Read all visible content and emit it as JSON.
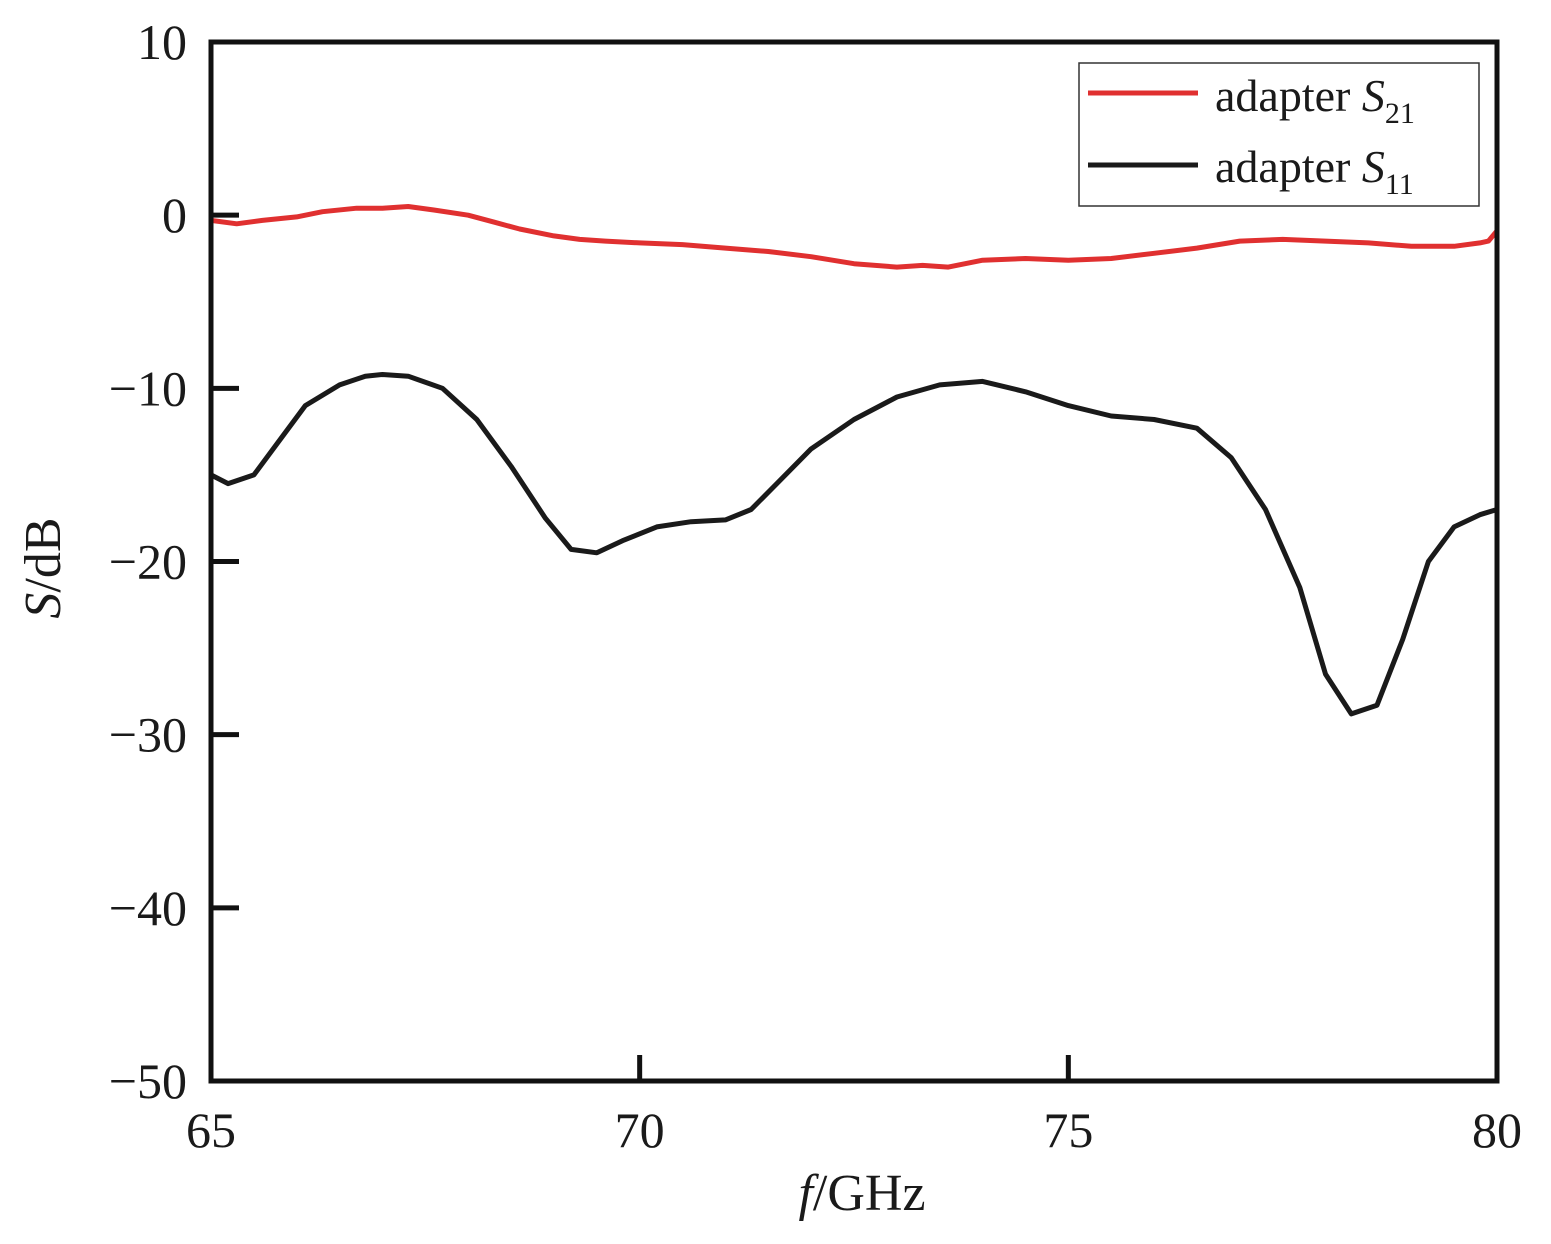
{
  "chart_data": {
    "type": "line",
    "xlabel": {
      "var": "f",
      "unit": "/GHz"
    },
    "ylabel": {
      "var": "S",
      "unit": "/dB"
    },
    "xlim": [
      65,
      80
    ],
    "ylim": [
      -50,
      10
    ],
    "xticks": [
      65,
      70,
      75,
      80
    ],
    "yticks": [
      10,
      0,
      -10,
      -20,
      -30,
      -40,
      -50
    ],
    "ytick_labels": [
      "10",
      "0",
      "−10",
      "−20",
      "−30",
      "−40",
      "−50"
    ],
    "grid": false,
    "legend_position": "top-right",
    "series": [
      {
        "name": "adapter S21",
        "legend_prefix": "adapter ",
        "legend_var": "S",
        "legend_sub": "21",
        "color": "#e03030",
        "points": [
          [
            65.0,
            -0.3
          ],
          [
            65.3,
            -0.5
          ],
          [
            65.6,
            -0.3
          ],
          [
            66.0,
            -0.1
          ],
          [
            66.3,
            0.2
          ],
          [
            66.7,
            0.4
          ],
          [
            67.0,
            0.4
          ],
          [
            67.3,
            0.5
          ],
          [
            67.6,
            0.3
          ],
          [
            68.0,
            0.0
          ],
          [
            68.3,
            -0.4
          ],
          [
            68.6,
            -0.8
          ],
          [
            69.0,
            -1.2
          ],
          [
            69.3,
            -1.4
          ],
          [
            69.6,
            -1.5
          ],
          [
            70.0,
            -1.6
          ],
          [
            70.5,
            -1.7
          ],
          [
            71.0,
            -1.9
          ],
          [
            71.5,
            -2.1
          ],
          [
            72.0,
            -2.4
          ],
          [
            72.5,
            -2.8
          ],
          [
            73.0,
            -3.0
          ],
          [
            73.3,
            -2.9
          ],
          [
            73.6,
            -3.0
          ],
          [
            74.0,
            -2.6
          ],
          [
            74.5,
            -2.5
          ],
          [
            75.0,
            -2.6
          ],
          [
            75.5,
            -2.5
          ],
          [
            76.0,
            -2.2
          ],
          [
            76.5,
            -1.9
          ],
          [
            77.0,
            -1.5
          ],
          [
            77.5,
            -1.4
          ],
          [
            78.0,
            -1.5
          ],
          [
            78.5,
            -1.6
          ],
          [
            79.0,
            -1.8
          ],
          [
            79.5,
            -1.8
          ],
          [
            79.8,
            -1.6
          ],
          [
            79.9,
            -1.5
          ],
          [
            80.0,
            -0.9
          ]
        ]
      },
      {
        "name": "adapter S11",
        "legend_prefix": "adapter ",
        "legend_var": "S",
        "legend_sub": "11",
        "color": "#1a1a1a",
        "points": [
          [
            65.0,
            -15.0
          ],
          [
            65.2,
            -15.5
          ],
          [
            65.5,
            -15.0
          ],
          [
            65.8,
            -13.0
          ],
          [
            66.1,
            -11.0
          ],
          [
            66.5,
            -9.8
          ],
          [
            66.8,
            -9.3
          ],
          [
            67.0,
            -9.2
          ],
          [
            67.3,
            -9.3
          ],
          [
            67.7,
            -10.0
          ],
          [
            68.1,
            -11.8
          ],
          [
            68.5,
            -14.5
          ],
          [
            68.9,
            -17.5
          ],
          [
            69.2,
            -19.3
          ],
          [
            69.5,
            -19.5
          ],
          [
            69.8,
            -18.8
          ],
          [
            70.2,
            -18.0
          ],
          [
            70.6,
            -17.7
          ],
          [
            71.0,
            -17.6
          ],
          [
            71.3,
            -17.0
          ],
          [
            71.6,
            -15.5
          ],
          [
            72.0,
            -13.5
          ],
          [
            72.5,
            -11.8
          ],
          [
            73.0,
            -10.5
          ],
          [
            73.5,
            -9.8
          ],
          [
            74.0,
            -9.6
          ],
          [
            74.5,
            -10.2
          ],
          [
            75.0,
            -11.0
          ],
          [
            75.5,
            -11.6
          ],
          [
            76.0,
            -11.8
          ],
          [
            76.5,
            -12.3
          ],
          [
            76.9,
            -14.0
          ],
          [
            77.3,
            -17.0
          ],
          [
            77.7,
            -21.5
          ],
          [
            78.0,
            -26.5
          ],
          [
            78.3,
            -28.8
          ],
          [
            78.6,
            -28.3
          ],
          [
            78.9,
            -24.5
          ],
          [
            79.2,
            -20.0
          ],
          [
            79.5,
            -18.0
          ],
          [
            79.8,
            -17.3
          ],
          [
            80.0,
            -17.0
          ]
        ]
      }
    ]
  }
}
